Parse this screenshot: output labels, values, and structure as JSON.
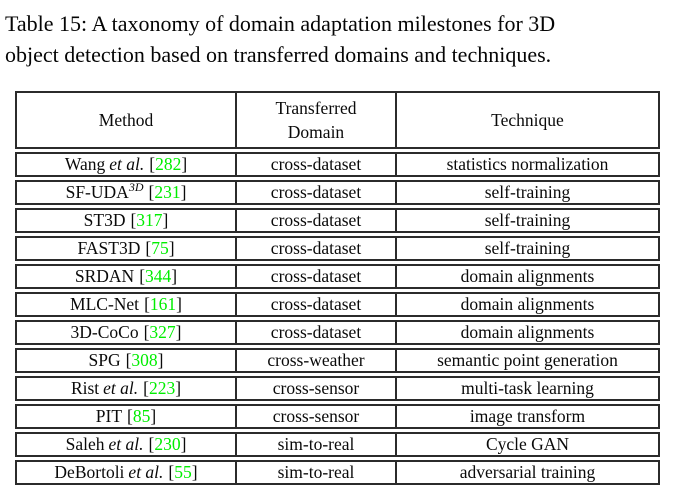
{
  "caption": {
    "line1": "Table 15: A taxonomy of domain adaptation milestones for 3D",
    "line2": "object detection based on transferred domains and techniques."
  },
  "table": {
    "headers": [
      "Method",
      "Transferred Domain",
      "Technique"
    ],
    "cite_open": "[",
    "cite_close": "]",
    "rows": [
      {
        "method": "Wang",
        "etal": "et al.",
        "sup": "",
        "cite": "282",
        "domain": "cross-dataset",
        "technique": "statistics normalization"
      },
      {
        "method": "SF-UDA",
        "etal": "",
        "sup": "3D",
        "cite": "231",
        "domain": "cross-dataset",
        "technique": "self-training"
      },
      {
        "method": "ST3D",
        "etal": "",
        "sup": "",
        "cite": "317",
        "domain": "cross-dataset",
        "technique": "self-training"
      },
      {
        "method": "FAST3D",
        "etal": "",
        "sup": "",
        "cite": "75",
        "domain": "cross-dataset",
        "technique": "self-training"
      },
      {
        "method": "SRDAN",
        "etal": "",
        "sup": "",
        "cite": "344",
        "domain": "cross-dataset",
        "technique": "domain alignments"
      },
      {
        "method": "MLC-Net",
        "etal": "",
        "sup": "",
        "cite": "161",
        "domain": "cross-dataset",
        "technique": "domain alignments"
      },
      {
        "method": "3D-CoCo",
        "etal": "",
        "sup": "",
        "cite": "327",
        "domain": "cross-dataset",
        "technique": "domain alignments"
      },
      {
        "method": "SPG",
        "etal": "",
        "sup": "",
        "cite": "308",
        "domain": "cross-weather",
        "technique": "semantic point generation"
      },
      {
        "method": "Rist",
        "etal": "et al.",
        "sup": "",
        "cite": "223",
        "domain": "cross-sensor",
        "technique": "multi-task learning"
      },
      {
        "method": "PIT",
        "etal": "",
        "sup": "",
        "cite": "85",
        "domain": "cross-sensor",
        "technique": "image transform"
      },
      {
        "method": "Saleh",
        "etal": "et al.",
        "sup": "",
        "cite": "230",
        "domain": "sim-to-real",
        "technique": "Cycle GAN"
      },
      {
        "method": "DeBortoli",
        "etal": "et al.",
        "sup": "",
        "cite": "55",
        "domain": "sim-to-real",
        "technique": "adversarial training"
      }
    ]
  },
  "colors": {
    "citation_green": "#00ee00",
    "text_black": "#0a0a0a"
  }
}
